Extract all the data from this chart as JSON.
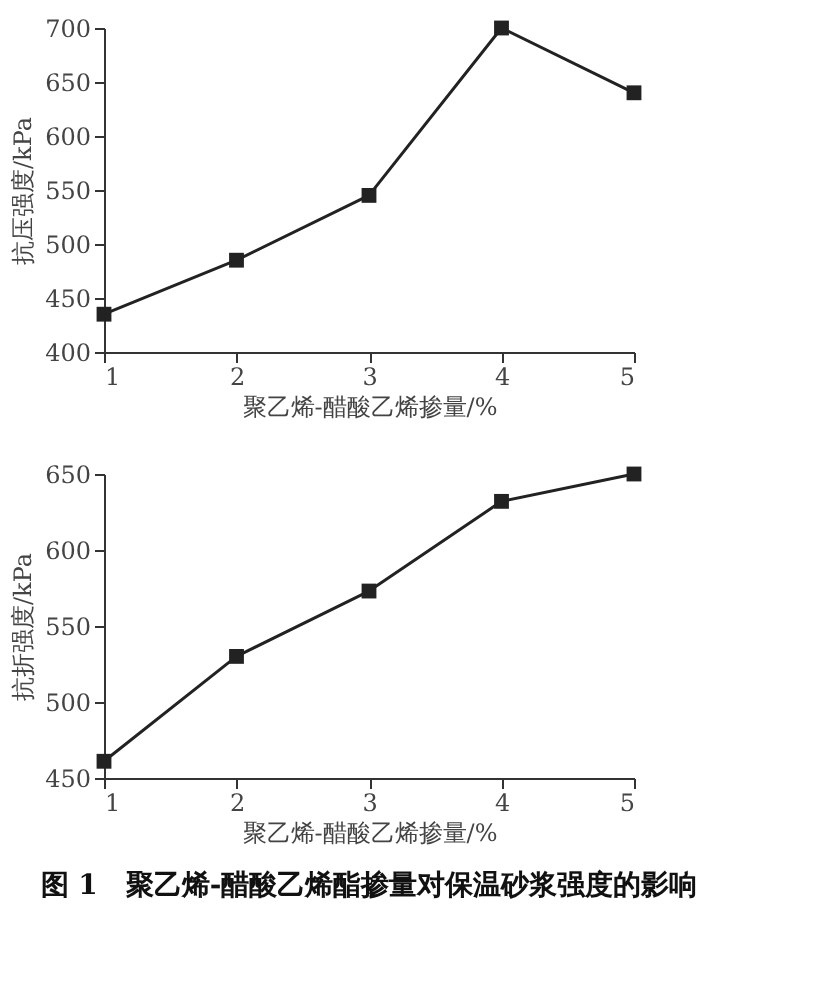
{
  "chart_data": [
    {
      "type": "line",
      "x": [
        1,
        2,
        3,
        4,
        5
      ],
      "xlabel": "聚乙烯-醋酸乙烯掺量/%",
      "ylabel": "抗压强度/kPa",
      "xlim": [
        1,
        5
      ],
      "xticks": [
        1,
        2,
        3,
        4,
        5
      ],
      "ylim": [
        400,
        700
      ],
      "yticks": [
        400,
        450,
        500,
        550,
        600,
        650,
        700
      ],
      "marker": "square",
      "grid": false,
      "legend": false,
      "series": [
        {
          "color": "#222222",
          "values": [
            435,
            485,
            545,
            700,
            640
          ]
        }
      ]
    },
    {
      "type": "line",
      "x": [
        1,
        2,
        3,
        4,
        5
      ],
      "xlabel": "聚乙烯-醋酸乙烯掺量/%",
      "ylabel": "抗折强度/kPa",
      "xlim": [
        1,
        5
      ],
      "xticks": [
        1,
        2,
        3,
        4,
        5
      ],
      "ylim": [
        450,
        650
      ],
      "yticks": [
        450,
        500,
        550,
        600,
        650
      ],
      "marker": "square",
      "grid": false,
      "legend": false,
      "series": [
        {
          "color": "#222222",
          "values": [
            461,
            530,
            573,
            632,
            650
          ]
        }
      ],
      "annotations": [
        "图 1　聚乙烯-醋酸乙烯酯掺量对保温砂浆强度的影响"
      ]
    }
  ]
}
